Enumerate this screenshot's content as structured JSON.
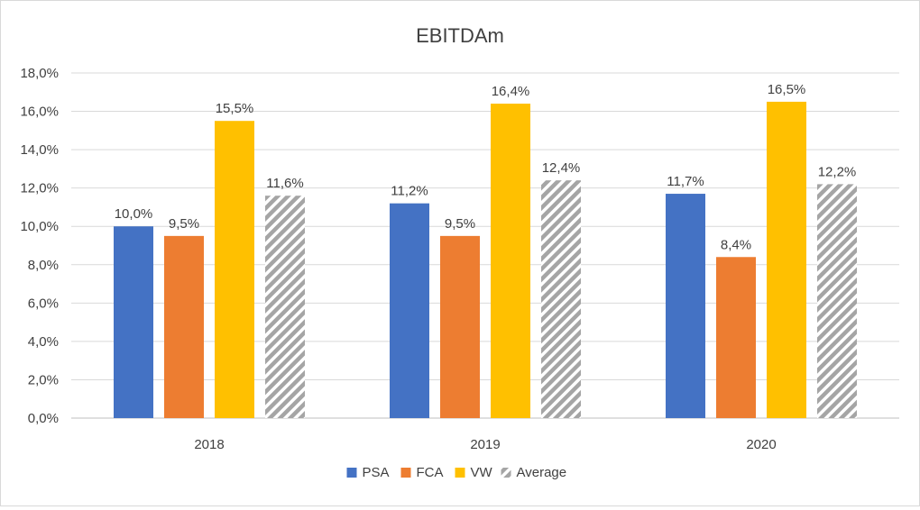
{
  "chart_data": {
    "type": "bar",
    "title": "EBITDAm",
    "xlabel": "",
    "ylabel": "",
    "categories": [
      "2018",
      "2019",
      "2020"
    ],
    "series": [
      {
        "name": "PSA",
        "values": [
          10.0,
          11.2,
          11.7
        ],
        "labels": [
          "10,0%",
          "11,2%",
          "11,7%"
        ],
        "color": "#4472c4",
        "pattern": "solid"
      },
      {
        "name": "FCA",
        "values": [
          9.5,
          9.5,
          8.4
        ],
        "labels": [
          "9,5%",
          "9,5%",
          "8,4%"
        ],
        "color": "#ed7d31",
        "pattern": "solid"
      },
      {
        "name": "VW",
        "values": [
          15.5,
          16.4,
          16.5
        ],
        "labels": [
          "15,5%",
          "16,4%",
          "16,5%"
        ],
        "color": "#ffc000",
        "pattern": "solid"
      },
      {
        "name": "Average",
        "values": [
          11.6,
          12.4,
          12.2
        ],
        "labels": [
          "11,6%",
          "12,4%",
          "12,2%"
        ],
        "color": "#a5a5a5",
        "pattern": "diagonal-hatch"
      }
    ],
    "ylim": [
      0,
      18
    ],
    "yticks": [
      "0,0%",
      "2,0%",
      "4,0%",
      "6,0%",
      "8,0%",
      "10,0%",
      "12,0%",
      "14,0%",
      "16,0%",
      "18,0%"
    ],
    "grid": true,
    "legend_position": "bottom"
  }
}
